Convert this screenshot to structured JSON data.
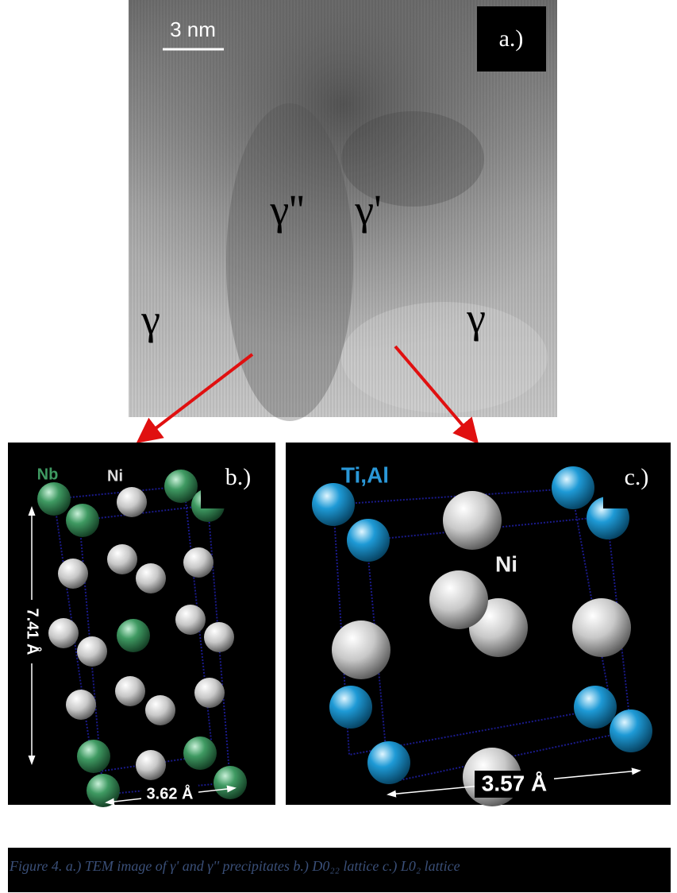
{
  "panel_a": {
    "label": "a.)",
    "scale_bar": "3 nm",
    "phases": [
      "γ''",
      "γ'",
      "γ",
      "γ"
    ]
  },
  "panel_b": {
    "label": "b.)",
    "atoms": [
      "Nb",
      "Ni"
    ],
    "height": "7.41 Å",
    "width": "3.62 Å"
  },
  "panel_c": {
    "label": "c.)",
    "atoms": [
      "Ti,Al",
      "Ni"
    ],
    "width": "3.57 Å"
  },
  "caption": "Figure 4. a.) TEM image of γ' and γ'' precipitates b.) D0₂₂ lattice c.) L0₂ lattice"
}
